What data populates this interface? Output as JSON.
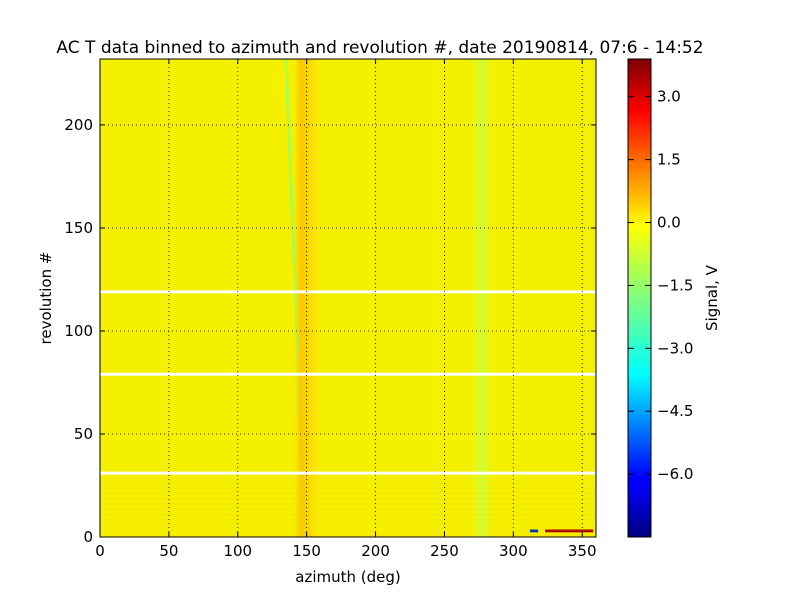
{
  "chart_data": {
    "type": "heatmap",
    "title": "AC T data binned to azimuth and revolution #, date 20190814, 07:6 - 14:52",
    "xlabel": "azimuth (deg)",
    "ylabel": "revolution #",
    "xlim": [
      0,
      360
    ],
    "ylim": [
      0,
      232
    ],
    "x_ticks": [
      0,
      50,
      100,
      150,
      200,
      250,
      300,
      350
    ],
    "y_ticks": [
      0,
      50,
      100,
      150,
      200
    ],
    "grid": true,
    "colormap": "jet",
    "colorbar": {
      "label": "Signal, V",
      "range": [
        -7.5,
        3.9
      ],
      "ticks": [
        "3.0",
        "1.5",
        "0.0",
        "−1.5",
        "−3.0",
        "−4.5",
        "−6.0"
      ],
      "tick_values": [
        3.0,
        1.5,
        0.0,
        -1.5,
        -3.0,
        -4.5,
        -6.0
      ]
    },
    "background_value": 0.0,
    "features": [
      {
        "kind": "diagonal_stripe",
        "x_at_y0": 149,
        "x_at_ytop": 135,
        "value": -1.6
      },
      {
        "kind": "vertical_band",
        "x_range": [
          141,
          160
        ],
        "value": 0.7
      },
      {
        "kind": "vertical_band",
        "x_range": [
          268,
          286
        ],
        "value": -0.3
      },
      {
        "kind": "missing_row",
        "y": 119
      },
      {
        "kind": "missing_row",
        "y": 79
      },
      {
        "kind": "missing_row",
        "y": 31
      },
      {
        "kind": "hot_spot",
        "x_range": [
          323,
          358
        ],
        "y": 3,
        "value": 3.8
      },
      {
        "kind": "cold_spot",
        "x_range": [
          312,
          318
        ],
        "y": 3,
        "value": -6.5
      }
    ]
  }
}
